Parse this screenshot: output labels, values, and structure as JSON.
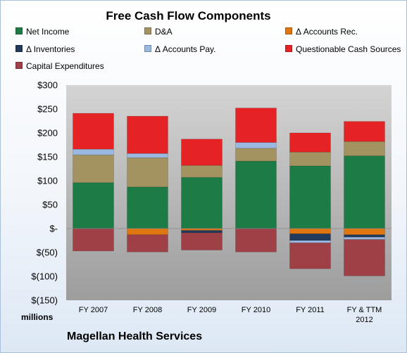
{
  "chart_data": {
    "type": "bar",
    "stacked": true,
    "title": "Free Cash Flow Components",
    "units_label": "millions",
    "company": "Magellan Health Services",
    "categories": [
      [
        "FY 2007"
      ],
      [
        "FY 2008"
      ],
      [
        "FY 2009"
      ],
      [
        "FY 2010"
      ],
      [
        "FY 2011"
      ],
      [
        "FY & TTM",
        "2012"
      ]
    ],
    "ylim": [
      -150,
      300
    ],
    "yticks": [
      300,
      250,
      200,
      150,
      100,
      50,
      0,
      -50,
      -100,
      -150
    ],
    "ytick_labels": [
      "$300",
      "$250",
      "$200",
      "$150",
      "$100",
      "$50",
      "$-",
      "$(50)",
      "$(100)",
      "$(150)"
    ],
    "grid": false,
    "legend_position": "top",
    "series": [
      {
        "name": "Net Income",
        "color": "#1d7c45",
        "values": [
          96,
          87,
          107,
          141,
          131,
          152
        ]
      },
      {
        "name": "D&A",
        "color": "#a39361",
        "values": [
          58,
          61,
          25,
          27,
          29,
          30
        ]
      },
      {
        "name": "Δ Accounts Rec.",
        "color": "#e0760f",
        "values": [
          0,
          -13,
          -4,
          0,
          -11,
          -13
        ]
      },
      {
        "name": "Δ Inventories",
        "color": "#223a5c",
        "values": [
          0,
          0,
          -5,
          0,
          -14,
          -5
        ]
      },
      {
        "name": "Δ Accounts Pay.",
        "color": "#9ab8e0",
        "values": [
          12,
          9,
          0,
          12,
          -5,
          -5
        ]
      },
      {
        "name": "Questionable Cash Sources",
        "color": "#e52325",
        "values": [
          75,
          78,
          55,
          72,
          40,
          42
        ]
      },
      {
        "name": "Capital Expenditures",
        "color": "#9f4047",
        "values": [
          -47,
          -36,
          -36,
          -49,
          -54,
          -76
        ]
      }
    ]
  }
}
